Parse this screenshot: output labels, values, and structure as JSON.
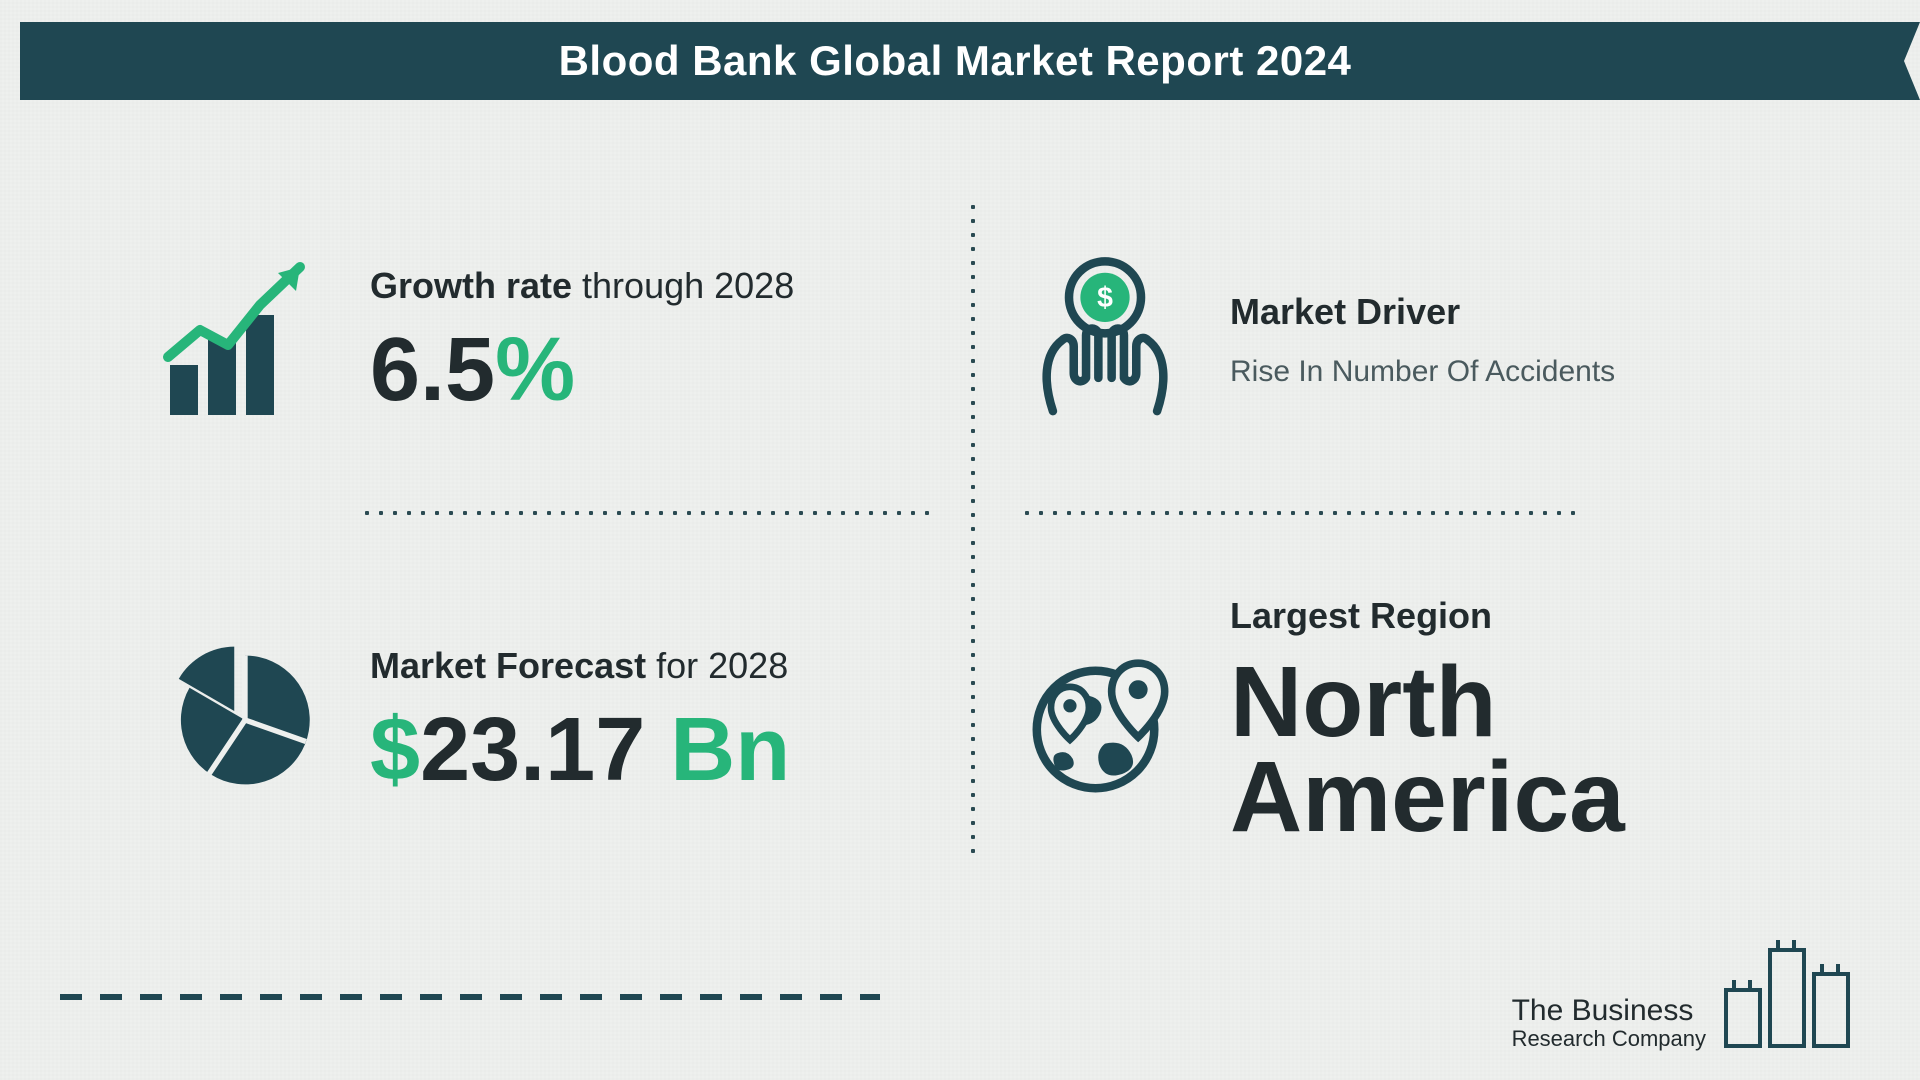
{
  "colors": {
    "header_bg": "#1f4752",
    "header_text": "#ffffff",
    "dark": "#1f4752",
    "accent": "#27b57a",
    "text_dark": "#222b2e",
    "text_mid": "#4a5a5e",
    "page_bg": "#eef0ee",
    "dots": "#2a4a52"
  },
  "header": {
    "title": "Blood Bank Global Market Report 2024"
  },
  "growth": {
    "label_strong": "Growth rate",
    "label_rest": " through 2028",
    "value_dark": "6.5",
    "value_accent": "%",
    "value_fontsize": 90,
    "label_fontsize": 36
  },
  "driver": {
    "label": "Market Driver",
    "text": "Rise In Number Of Accidents",
    "label_fontsize": 36,
    "text_fontsize": 30
  },
  "forecast": {
    "label_strong": "Market Forecast",
    "label_rest": " for 2028",
    "value_dark": "$",
    "value_mid": "23.17 ",
    "value_accent": "Bn",
    "value_fontsize": 90,
    "label_fontsize": 36
  },
  "region": {
    "label": "Largest Region",
    "value": "North\nAmerica",
    "label_fontsize": 36,
    "value_fontsize": 100
  },
  "logo": {
    "line1": "The Business",
    "line2": "Research Company"
  }
}
